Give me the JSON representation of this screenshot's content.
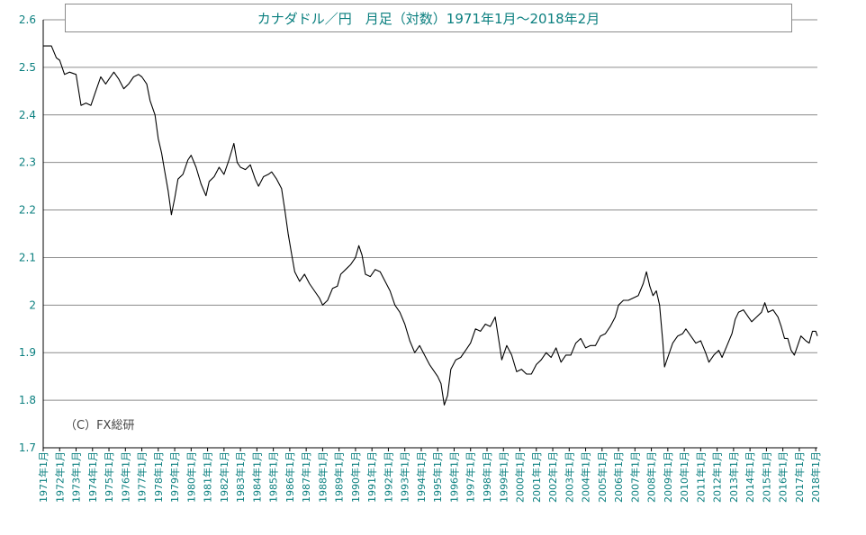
{
  "chart_data": {
    "type": "line",
    "title": "カナダドル／円　月足（対数）1971年1月～2018年2月",
    "watermark": "（C）FX総研",
    "ylim": [
      1.7,
      2.6
    ],
    "yticks": [
      "1.7",
      "1.8",
      "1.9",
      "2",
      "2.1",
      "2.2",
      "2.3",
      "2.4",
      "2.5",
      "2.6"
    ],
    "xlim": [
      1971.0,
      2018.1
    ],
    "xticks": [
      "1971年1月",
      "1972年1月",
      "1973年1月",
      "1974年1月",
      "1975年1月",
      "1976年1月",
      "1977年1月",
      "1978年1月",
      "1979年1月",
      "1980年1月",
      "1981年1月",
      "1982年1月",
      "1983年1月",
      "1984年1月",
      "1985年1月",
      "1986年1月",
      "1987年1月",
      "1988年1月",
      "1989年1月",
      "1990年1月",
      "1991年1月",
      "1992年1月",
      "1993年1月",
      "1994年1月",
      "1995年1月",
      "1996年1月",
      "1997年1月",
      "1998年1月",
      "1999年1月",
      "2000年1月",
      "2001年1月",
      "2002年1月",
      "2003年1月",
      "2004年1月",
      "2005年1月",
      "2006年1月",
      "2007年1月",
      "2008年1月",
      "2009年1月",
      "2010年1月",
      "2011年1月",
      "2012年1月",
      "2013年1月",
      "2014年1月",
      "2015年1月",
      "2016年1月",
      "2017年1月",
      "2018年1月"
    ],
    "grid": true,
    "colors": {
      "line": "#000000",
      "grid": "#8c8c8c",
      "tick_label": "#0a7f7f"
    },
    "series": [
      {
        "values": [
          [
            1971.0,
            2.545
          ],
          [
            1971.5,
            2.545
          ],
          [
            1971.8,
            2.52
          ],
          [
            1972.0,
            2.515
          ],
          [
            1972.3,
            2.485
          ],
          [
            1972.6,
            2.49
          ],
          [
            1973.0,
            2.485
          ],
          [
            1973.3,
            2.42
          ],
          [
            1973.6,
            2.425
          ],
          [
            1973.9,
            2.42
          ],
          [
            1974.2,
            2.45
          ],
          [
            1974.5,
            2.48
          ],
          [
            1974.8,
            2.465
          ],
          [
            1975.0,
            2.475
          ],
          [
            1975.3,
            2.49
          ],
          [
            1975.6,
            2.475
          ],
          [
            1975.9,
            2.455
          ],
          [
            1976.2,
            2.465
          ],
          [
            1976.5,
            2.48
          ],
          [
            1976.8,
            2.485
          ],
          [
            1977.0,
            2.48
          ],
          [
            1977.3,
            2.465
          ],
          [
            1977.5,
            2.43
          ],
          [
            1977.8,
            2.4
          ],
          [
            1978.0,
            2.35
          ],
          [
            1978.2,
            2.32
          ],
          [
            1978.4,
            2.28
          ],
          [
            1978.6,
            2.24
          ],
          [
            1978.8,
            2.19
          ],
          [
            1979.0,
            2.225
          ],
          [
            1979.2,
            2.265
          ],
          [
            1979.5,
            2.275
          ],
          [
            1979.8,
            2.305
          ],
          [
            1980.0,
            2.315
          ],
          [
            1980.3,
            2.29
          ],
          [
            1980.6,
            2.255
          ],
          [
            1980.9,
            2.23
          ],
          [
            1981.1,
            2.26
          ],
          [
            1981.4,
            2.27
          ],
          [
            1981.7,
            2.29
          ],
          [
            1982.0,
            2.275
          ],
          [
            1982.3,
            2.305
          ],
          [
            1982.6,
            2.34
          ],
          [
            1982.8,
            2.3
          ],
          [
            1983.0,
            2.29
          ],
          [
            1983.3,
            2.285
          ],
          [
            1983.6,
            2.295
          ],
          [
            1983.9,
            2.265
          ],
          [
            1984.1,
            2.25
          ],
          [
            1984.4,
            2.27
          ],
          [
            1984.7,
            2.275
          ],
          [
            1984.9,
            2.28
          ],
          [
            1985.2,
            2.265
          ],
          [
            1985.5,
            2.245
          ],
          [
            1985.7,
            2.2
          ],
          [
            1985.9,
            2.15
          ],
          [
            1986.1,
            2.11
          ],
          [
            1986.3,
            2.07
          ],
          [
            1986.6,
            2.05
          ],
          [
            1986.9,
            2.065
          ],
          [
            1987.2,
            2.045
          ],
          [
            1987.5,
            2.03
          ],
          [
            1987.8,
            2.015
          ],
          [
            1988.0,
            2.0
          ],
          [
            1988.3,
            2.01
          ],
          [
            1988.6,
            2.035
          ],
          [
            1988.9,
            2.04
          ],
          [
            1989.1,
            2.065
          ],
          [
            1989.4,
            2.075
          ],
          [
            1989.7,
            2.085
          ],
          [
            1990.0,
            2.1
          ],
          [
            1990.2,
            2.125
          ],
          [
            1990.4,
            2.105
          ],
          [
            1990.6,
            2.065
          ],
          [
            1990.9,
            2.06
          ],
          [
            1991.2,
            2.075
          ],
          [
            1991.5,
            2.07
          ],
          [
            1991.8,
            2.05
          ],
          [
            1992.1,
            2.03
          ],
          [
            1992.4,
            2.0
          ],
          [
            1992.7,
            1.985
          ],
          [
            1993.0,
            1.96
          ],
          [
            1993.3,
            1.925
          ],
          [
            1993.6,
            1.9
          ],
          [
            1993.9,
            1.915
          ],
          [
            1994.2,
            1.895
          ],
          [
            1994.5,
            1.875
          ],
          [
            1994.8,
            1.86
          ],
          [
            1995.0,
            1.85
          ],
          [
            1995.2,
            1.835
          ],
          [
            1995.4,
            1.79
          ],
          [
            1995.6,
            1.81
          ],
          [
            1995.8,
            1.865
          ],
          [
            1996.1,
            1.885
          ],
          [
            1996.4,
            1.89
          ],
          [
            1996.7,
            1.905
          ],
          [
            1997.0,
            1.92
          ],
          [
            1997.3,
            1.95
          ],
          [
            1997.6,
            1.945
          ],
          [
            1997.9,
            1.96
          ],
          [
            1998.2,
            1.955
          ],
          [
            1998.5,
            1.975
          ],
          [
            1998.7,
            1.93
          ],
          [
            1998.9,
            1.885
          ],
          [
            1999.2,
            1.915
          ],
          [
            1999.5,
            1.895
          ],
          [
            1999.8,
            1.86
          ],
          [
            2000.1,
            1.865
          ],
          [
            2000.4,
            1.855
          ],
          [
            2000.7,
            1.855
          ],
          [
            2001.0,
            1.875
          ],
          [
            2001.3,
            1.885
          ],
          [
            2001.6,
            1.9
          ],
          [
            2001.9,
            1.89
          ],
          [
            2002.2,
            1.91
          ],
          [
            2002.5,
            1.88
          ],
          [
            2002.8,
            1.895
          ],
          [
            2003.1,
            1.895
          ],
          [
            2003.4,
            1.92
          ],
          [
            2003.7,
            1.93
          ],
          [
            2004.0,
            1.91
          ],
          [
            2004.3,
            1.915
          ],
          [
            2004.6,
            1.915
          ],
          [
            2004.9,
            1.935
          ],
          [
            2005.2,
            1.94
          ],
          [
            2005.5,
            1.955
          ],
          [
            2005.8,
            1.975
          ],
          [
            2006.0,
            2.0
          ],
          [
            2006.3,
            2.01
          ],
          [
            2006.6,
            2.01
          ],
          [
            2006.9,
            2.015
          ],
          [
            2007.2,
            2.02
          ],
          [
            2007.5,
            2.045
          ],
          [
            2007.7,
            2.07
          ],
          [
            2007.9,
            2.04
          ],
          [
            2008.1,
            2.02
          ],
          [
            2008.3,
            2.03
          ],
          [
            2008.5,
            2.0
          ],
          [
            2008.7,
            1.92
          ],
          [
            2008.8,
            1.87
          ],
          [
            2009.0,
            1.89
          ],
          [
            2009.3,
            1.92
          ],
          [
            2009.6,
            1.935
          ],
          [
            2009.9,
            1.94
          ],
          [
            2010.1,
            1.95
          ],
          [
            2010.4,
            1.935
          ],
          [
            2010.7,
            1.92
          ],
          [
            2011.0,
            1.925
          ],
          [
            2011.3,
            1.9
          ],
          [
            2011.5,
            1.88
          ],
          [
            2011.8,
            1.895
          ],
          [
            2012.1,
            1.905
          ],
          [
            2012.3,
            1.89
          ],
          [
            2012.6,
            1.915
          ],
          [
            2012.9,
            1.94
          ],
          [
            2013.1,
            1.97
          ],
          [
            2013.3,
            1.985
          ],
          [
            2013.6,
            1.99
          ],
          [
            2013.9,
            1.975
          ],
          [
            2014.1,
            1.965
          ],
          [
            2014.4,
            1.975
          ],
          [
            2014.7,
            1.985
          ],
          [
            2014.9,
            2.005
          ],
          [
            2015.1,
            1.985
          ],
          [
            2015.4,
            1.99
          ],
          [
            2015.7,
            1.975
          ],
          [
            2015.9,
            1.955
          ],
          [
            2016.1,
            1.93
          ],
          [
            2016.3,
            1.93
          ],
          [
            2016.5,
            1.905
          ],
          [
            2016.7,
            1.895
          ],
          [
            2016.9,
            1.915
          ],
          [
            2017.1,
            1.935
          ],
          [
            2017.4,
            1.925
          ],
          [
            2017.6,
            1.92
          ],
          [
            2017.8,
            1.945
          ],
          [
            2018.0,
            1.945
          ],
          [
            2018.1,
            1.935
          ]
        ]
      }
    ]
  }
}
